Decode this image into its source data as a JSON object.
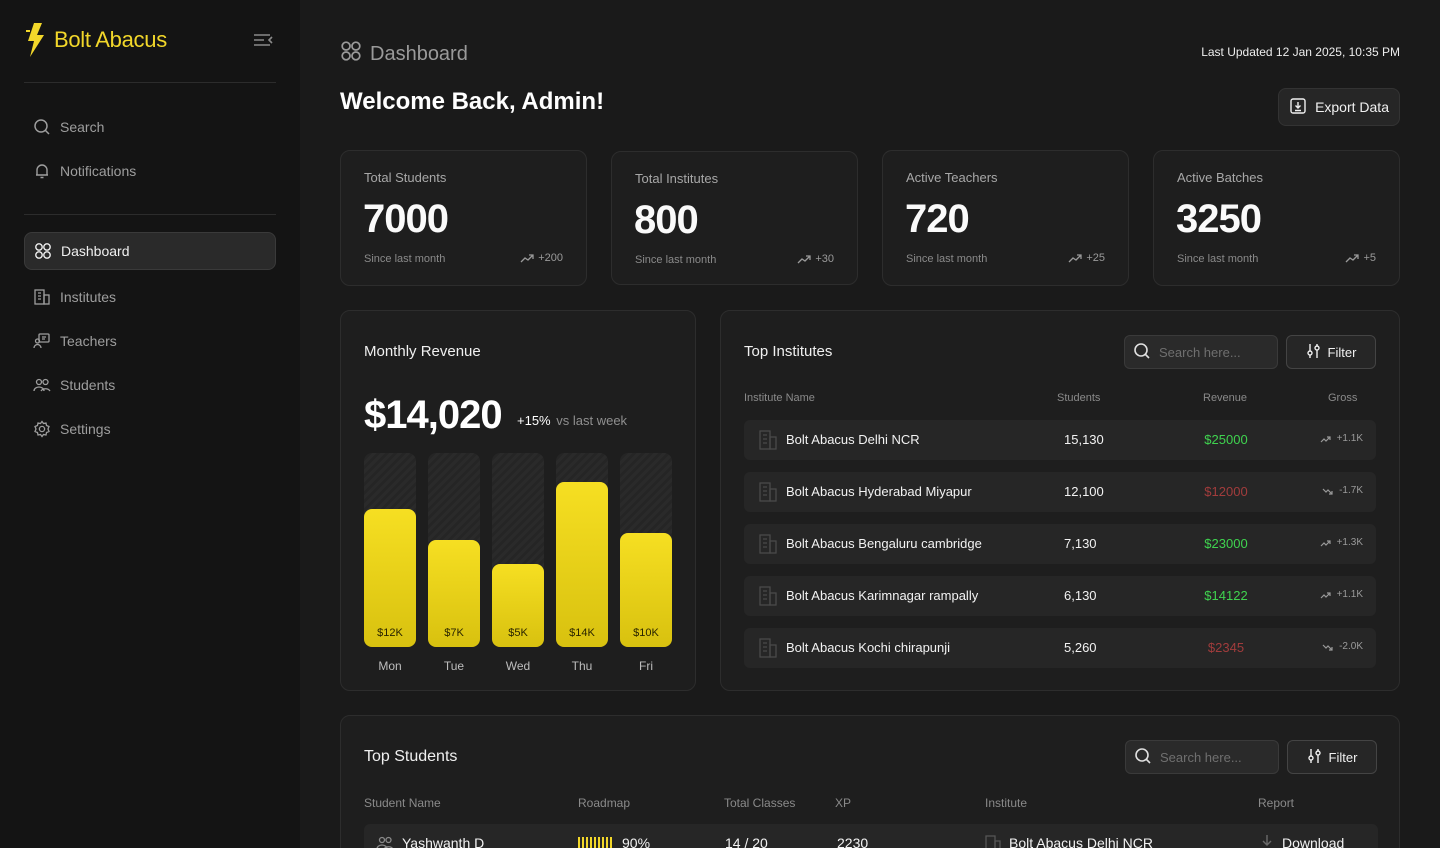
{
  "brand": {
    "name": "Bolt Abacus",
    "color": "#f2d72a"
  },
  "sidebar": {
    "utility": [
      {
        "label": "Search",
        "icon": "search-icon"
      },
      {
        "label": "Notifications",
        "icon": "bell-icon"
      }
    ],
    "items": [
      {
        "label": "Dashboard",
        "icon": "grid-icon",
        "active": true
      },
      {
        "label": "Institutes",
        "icon": "building-icon",
        "active": false
      },
      {
        "label": "Teachers",
        "icon": "teacher-icon",
        "active": false
      },
      {
        "label": "Students",
        "icon": "students-icon",
        "active": false
      },
      {
        "label": "Settings",
        "icon": "gear-icon",
        "active": false
      }
    ]
  },
  "header": {
    "breadcrumb": "Dashboard",
    "last_updated": "Last Updated 12 Jan 2025, 10:35 PM",
    "welcome": "Welcome Back, Admin!",
    "export_label": "Export Data"
  },
  "stats": [
    {
      "label": "Total Students",
      "value": "7000",
      "since": "Since last month",
      "delta": "+200"
    },
    {
      "label": "Total Institutes",
      "value": "800",
      "since": "Since last month",
      "delta": "+30"
    },
    {
      "label": "Active Teachers",
      "value": "720",
      "since": "Since last month",
      "delta": "+25"
    },
    {
      "label": "Active Batches",
      "value": "3250",
      "since": "Since last month",
      "delta": "+5"
    }
  ],
  "revenue": {
    "title": "Monthly Revenue",
    "amount": "$14,020",
    "change": "+15%",
    "change_label": "vs last week",
    "chart_data": {
      "type": "bar",
      "categories": [
        "Mon",
        "Tue",
        "Wed",
        "Thu",
        "Fri"
      ],
      "values": [
        12,
        7,
        5,
        14,
        10
      ],
      "labels": [
        "$12K",
        "$7K",
        "$5K",
        "$14K",
        "$10K"
      ],
      "fill_fraction": [
        0.71,
        0.55,
        0.43,
        0.85,
        0.59
      ],
      "bar_color": "#f2d72a"
    }
  },
  "institutes": {
    "title": "Top Institutes",
    "search_placeholder": "Search here...",
    "filter_label": "Filter",
    "columns": [
      "Institute Name",
      "Students",
      "Revenue",
      "Gross"
    ],
    "rows": [
      {
        "name": "Bolt Abacus Delhi NCR",
        "students": "15,130",
        "revenue": "$25000",
        "positive": true,
        "gross": "+1.1K"
      },
      {
        "name": "Bolt Abacus Hyderabad Miyapur",
        "students": "12,100",
        "revenue": "$12000",
        "positive": false,
        "gross": "-1.7K"
      },
      {
        "name": "Bolt Abacus Bengaluru cambridge",
        "students": "7,130",
        "revenue": "$23000",
        "positive": true,
        "gross": "+1.3K"
      },
      {
        "name": "Bolt Abacus Karimnagar rampally",
        "students": "6,130",
        "revenue": "$14122",
        "positive": true,
        "gross": "+1.1K"
      },
      {
        "name": "Bolt Abacus Kochi chirapunji",
        "students": "5,260",
        "revenue": "$2345",
        "positive": false,
        "gross": "-2.0K"
      }
    ],
    "positive_color": "#3fd34f",
    "negative_color": "#a13c3c"
  },
  "students": {
    "title": "Top Students",
    "search_placeholder": "Search here...",
    "filter_label": "Filter",
    "columns": [
      "Student Name",
      "Roadmap",
      "Total Classes",
      "XP",
      "Institute",
      "Report"
    ],
    "rows": [
      {
        "name": "Yashwanth D",
        "roadmap": "90%",
        "classes": "14 / 20",
        "xp": "2230",
        "institute": "Bolt Abacus Delhi NCR",
        "report": "Download"
      }
    ]
  }
}
